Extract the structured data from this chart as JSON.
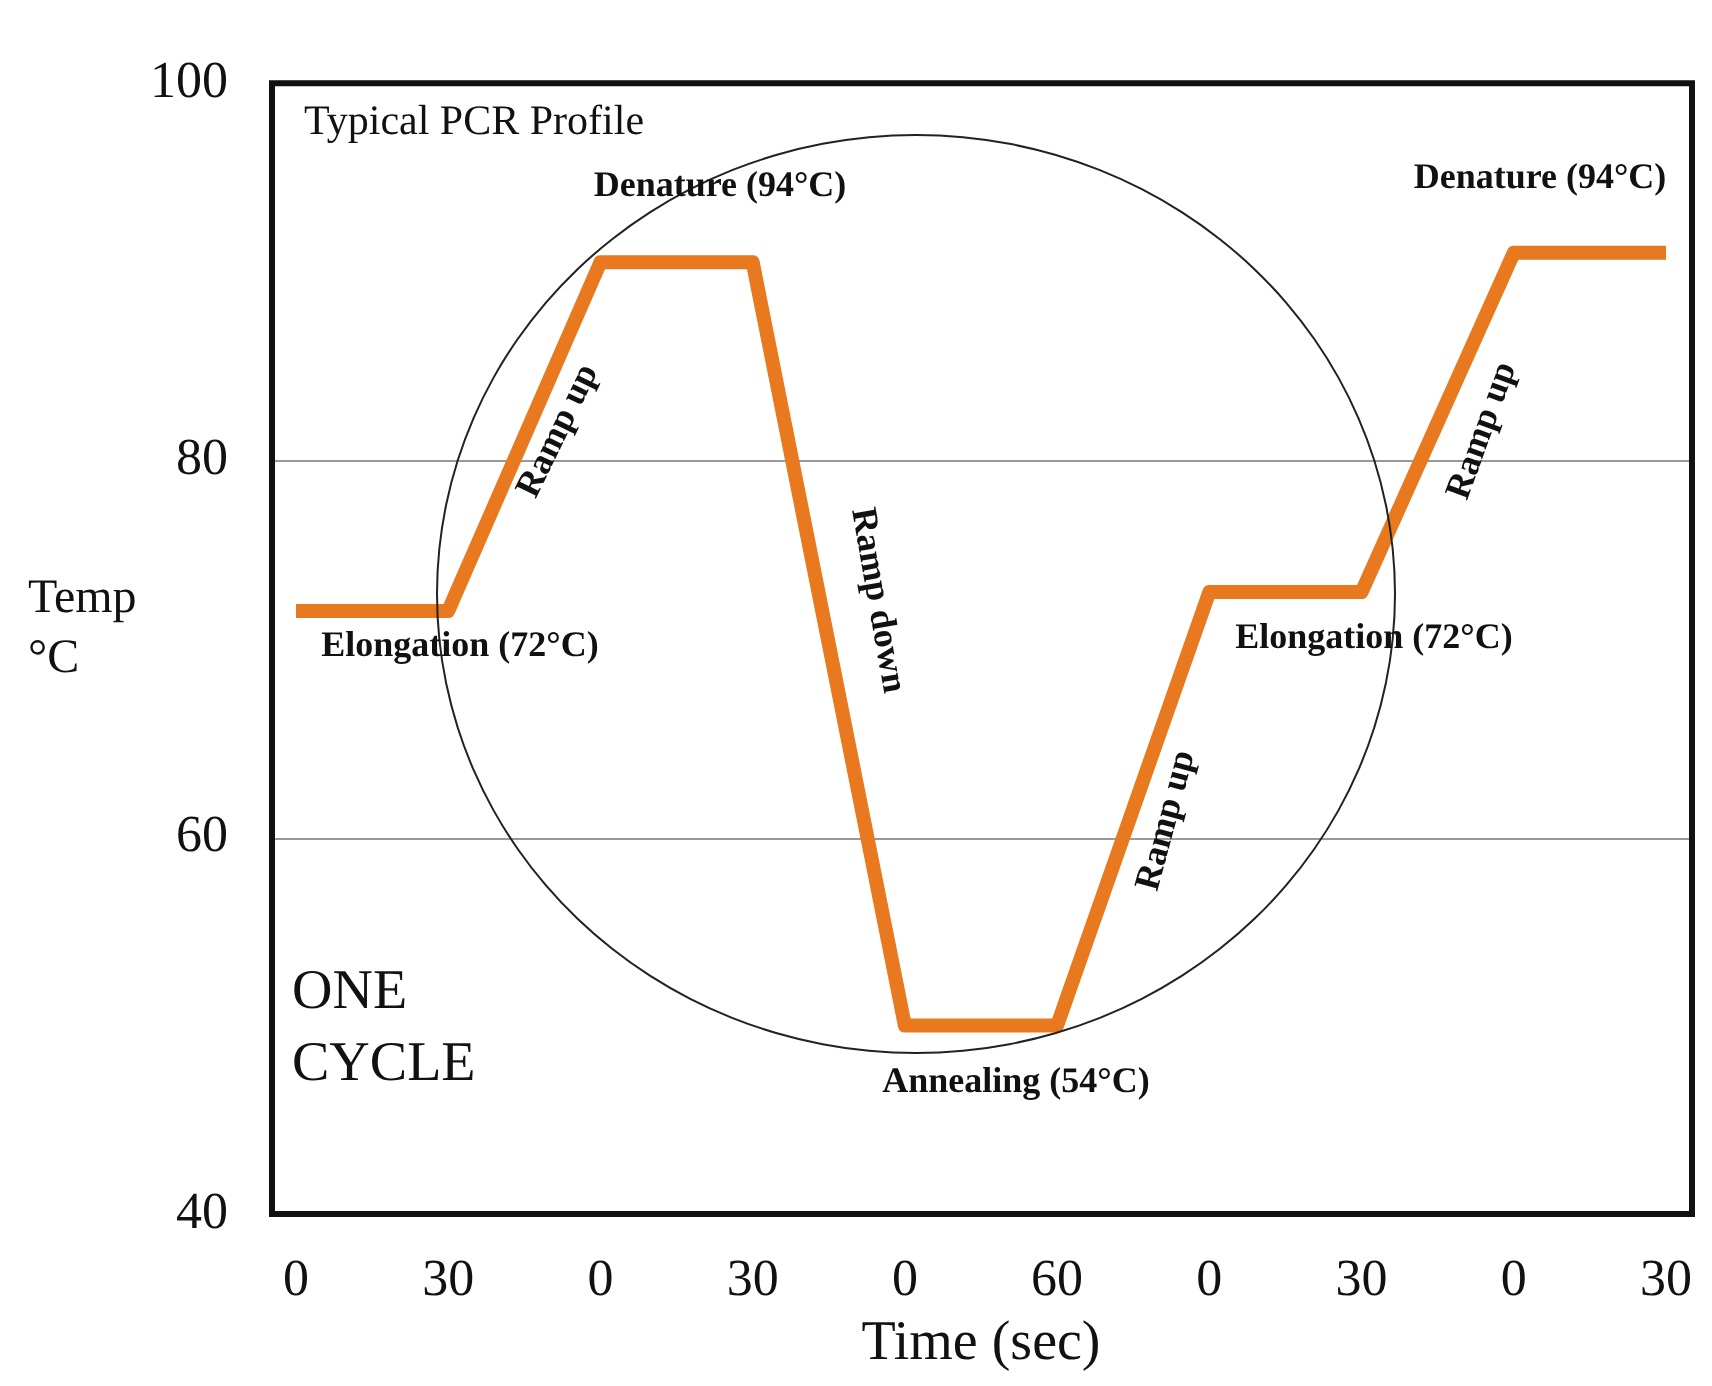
{
  "chart_data": {
    "type": "line",
    "title": "Typical PCR Profile",
    "xlabel": "Time (sec)",
    "ylabel": "Temp °C",
    "categories": [
      "0",
      "30",
      "0",
      "30",
      "0",
      "60",
      "0",
      "30",
      "0",
      "30"
    ],
    "series": [
      {
        "color": "#e8791e",
        "values": [
          72,
          72,
          90.5,
          90.5,
          50,
          50,
          73,
          73,
          91,
          91
        ]
      }
    ],
    "ylim": [
      40,
      100
    ],
    "yticks": [
      40,
      60,
      80,
      100
    ],
    "grid": "y",
    "legend": false,
    "marker": "none",
    "line_style": "solid",
    "annotations": [
      "Denature (94°C)",
      "Ramp up",
      "Ramp down",
      "Elongation (72°C)",
      "Annealing (54°C)",
      "Ramp up",
      "Elongation (72°C)",
      "Ramp up",
      "Denature (94°C)",
      "ONE CYCLE"
    ]
  }
}
